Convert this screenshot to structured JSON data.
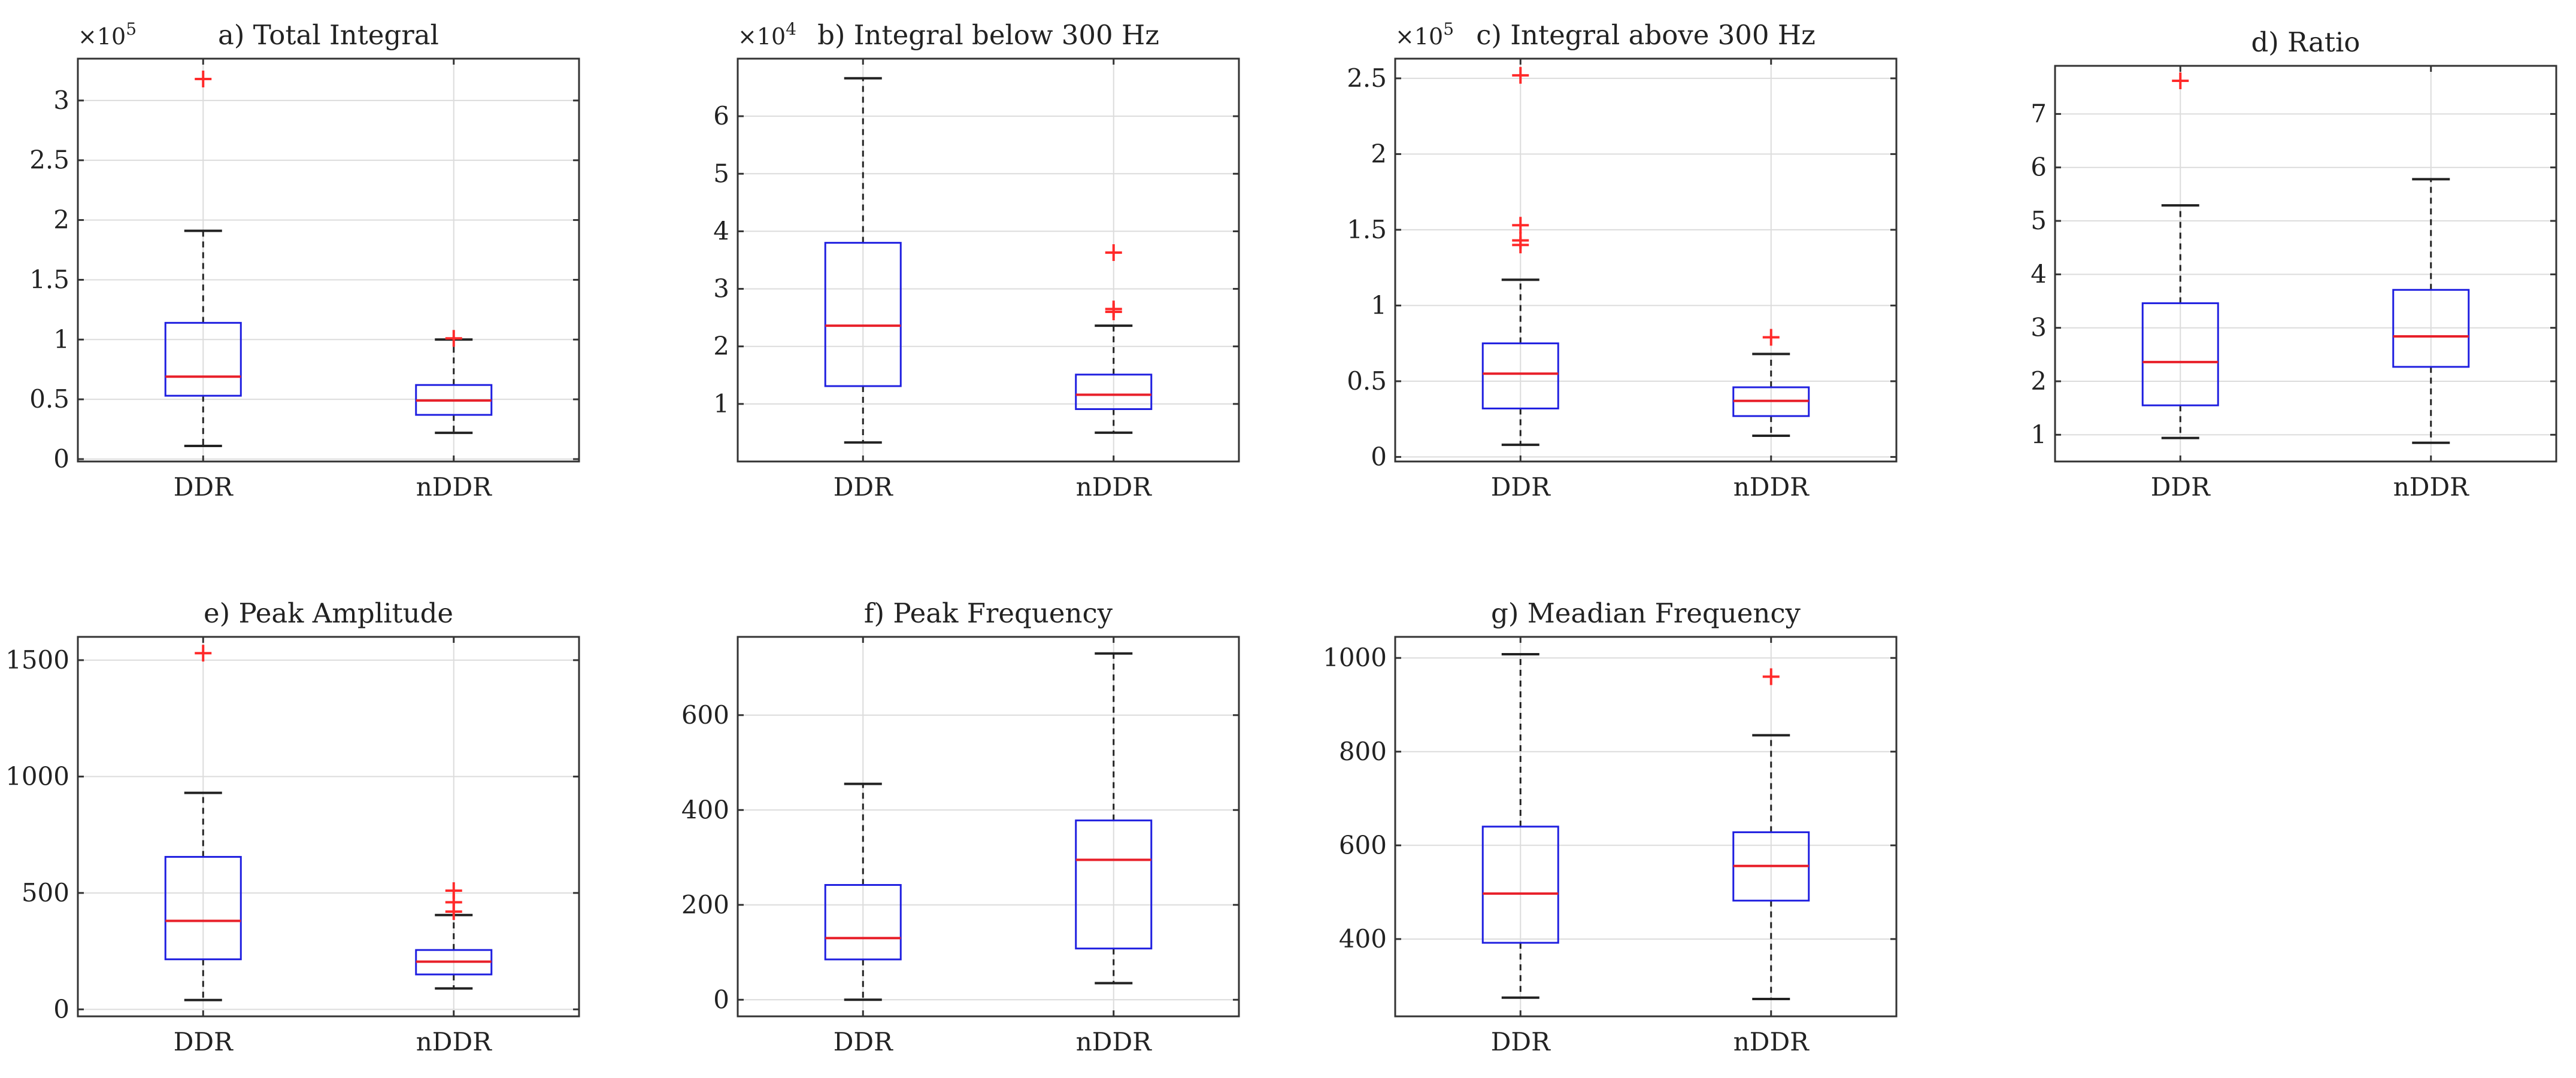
{
  "chart_data": [
    {
      "type": "boxplot",
      "title": "a) Total Integral",
      "multiplier": "×10",
      "multiplier_exp": "5",
      "ylim": [
        -0.02,
        3.35
      ],
      "yticks": [
        0,
        0.5,
        1,
        1.5,
        2,
        2.5,
        3
      ],
      "ytick_labels": [
        "0",
        "0.5",
        "1",
        "1.5",
        "2",
        "2.5",
        "3"
      ],
      "categories": [
        "DDR",
        "nDDR"
      ],
      "boxes": [
        {
          "min": 0.11,
          "q1": 0.53,
          "median": 0.69,
          "q3": 1.14,
          "max": 1.91,
          "outliers": [
            3.18
          ]
        },
        {
          "min": 0.22,
          "q1": 0.37,
          "median": 0.49,
          "q3": 0.62,
          "max": 1.0,
          "outliers": [
            1.01
          ]
        }
      ]
    },
    {
      "type": "boxplot",
      "title": "b) Integral below 300 Hz",
      "multiplier": "×10",
      "multiplier_exp": "4",
      "ylim": [
        0,
        7
      ],
      "yticks": [
        1,
        2,
        3,
        4,
        5,
        6
      ],
      "ytick_labels": [
        "1",
        "2",
        "3",
        "4",
        "5",
        "6"
      ],
      "categories": [
        "DDR",
        "nDDR"
      ],
      "boxes": [
        {
          "min": 0.33,
          "q1": 1.31,
          "median": 2.36,
          "q3": 3.8,
          "max": 6.66,
          "outliers": []
        },
        {
          "min": 0.5,
          "q1": 0.91,
          "median": 1.16,
          "q3": 1.51,
          "max": 2.36,
          "outliers": [
            2.6,
            2.65,
            3.63
          ]
        }
      ]
    },
    {
      "type": "boxplot",
      "title": "c) Integral above 300 Hz",
      "multiplier": "×10",
      "multiplier_exp": "5",
      "ylim": [
        -0.03,
        2.63
      ],
      "yticks": [
        0,
        0.5,
        1,
        1.5,
        2,
        2.5
      ],
      "ytick_labels": [
        "0",
        "0.5",
        "1",
        "1.5",
        "2",
        "2.5"
      ],
      "categories": [
        "DDR",
        "nDDR"
      ],
      "boxes": [
        {
          "min": 0.08,
          "q1": 0.32,
          "median": 0.55,
          "q3": 0.75,
          "max": 1.17,
          "outliers": [
            1.4,
            1.43,
            1.53,
            2.52
          ]
        },
        {
          "min": 0.14,
          "q1": 0.27,
          "median": 0.37,
          "q3": 0.46,
          "max": 0.68,
          "outliers": [
            0.79
          ]
        }
      ]
    },
    {
      "type": "boxplot",
      "title": "d) Ratio",
      "multiplier": "",
      "multiplier_exp": "",
      "ylim": [
        0.5,
        7.9
      ],
      "yticks": [
        1,
        2,
        3,
        4,
        5,
        6,
        7
      ],
      "ytick_labels": [
        "1",
        "2",
        "3",
        "4",
        "5",
        "6",
        "7"
      ],
      "categories": [
        "DDR",
        "nDDR"
      ],
      "boxes": [
        {
          "min": 0.94,
          "q1": 1.55,
          "median": 2.36,
          "q3": 3.46,
          "max": 5.29,
          "outliers": [
            7.62
          ]
        },
        {
          "min": 0.85,
          "q1": 2.27,
          "median": 2.84,
          "q3": 3.71,
          "max": 5.78,
          "outliers": []
        }
      ]
    },
    {
      "type": "boxplot",
      "title": "e) Peak Amplitude",
      "multiplier": "",
      "multiplier_exp": "",
      "ylim": [
        -30,
        1600
      ],
      "yticks": [
        0,
        500,
        1000,
        1500
      ],
      "ytick_labels": [
        "0",
        "500",
        "1000",
        "1500"
      ],
      "categories": [
        "DDR",
        "nDDR"
      ],
      "boxes": [
        {
          "min": 40,
          "q1": 215,
          "median": 380,
          "q3": 655,
          "max": 930,
          "outliers": [
            1530
          ]
        },
        {
          "min": 90,
          "q1": 150,
          "median": 205,
          "q3": 255,
          "max": 405,
          "outliers": [
            420,
            460,
            510
          ]
        }
      ]
    },
    {
      "type": "boxplot",
      "title": "f) Peak Frequency",
      "multiplier": "",
      "multiplier_exp": "",
      "ylim": [
        -35,
        765
      ],
      "yticks": [
        0,
        200,
        400,
        600
      ],
      "ytick_labels": [
        "0",
        "200",
        "400",
        "600"
      ],
      "categories": [
        "DDR",
        "nDDR"
      ],
      "boxes": [
        {
          "min": 0,
          "q1": 85,
          "median": 130,
          "q3": 242,
          "max": 455,
          "outliers": []
        },
        {
          "min": 35,
          "q1": 108,
          "median": 295,
          "q3": 378,
          "max": 730,
          "outliers": []
        }
      ]
    },
    {
      "type": "boxplot",
      "title": "g) Meadian Frequency",
      "multiplier": "",
      "multiplier_exp": "",
      "ylim": [
        235,
        1045
      ],
      "yticks": [
        400,
        600,
        800,
        1000
      ],
      "ytick_labels": [
        "400",
        "600",
        "800",
        "1000"
      ],
      "categories": [
        "DDR",
        "nDDR"
      ],
      "boxes": [
        {
          "min": 275,
          "q1": 392,
          "median": 497,
          "q3": 640,
          "max": 1008,
          "outliers": []
        },
        {
          "min": 272,
          "q1": 482,
          "median": 556,
          "q3": 628,
          "max": 835,
          "outliers": [
            960
          ]
        }
      ]
    }
  ]
}
